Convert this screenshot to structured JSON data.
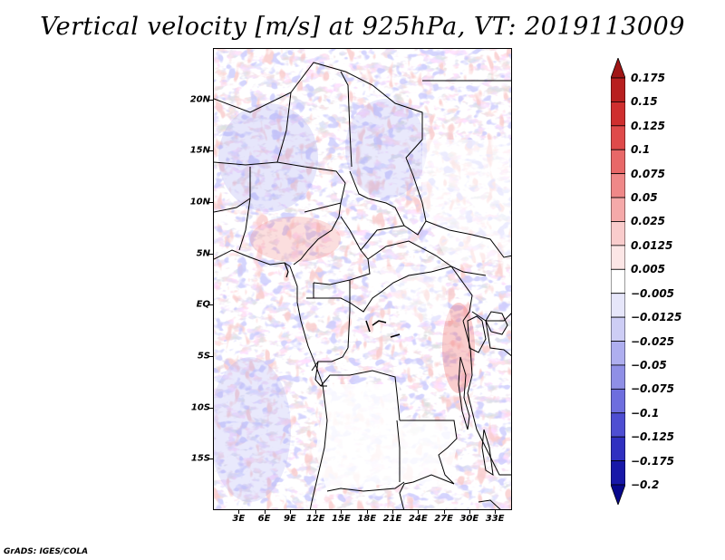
{
  "title": "Vertical velocity [m/s] at 925hPa, VT: 2019113009",
  "credit": "GrADS: IGES/COLA",
  "map": {
    "lon_range": [
      0,
      35
    ],
    "lat_range": [
      -20,
      25
    ],
    "lat_labels": [
      "20N",
      "15N",
      "10N",
      "5N",
      "EQ",
      "5S",
      "10S",
      "15S"
    ],
    "lat_values": [
      20,
      15,
      10,
      5,
      0,
      -5,
      -10,
      -15
    ],
    "lon_labels": [
      "3E",
      "6E",
      "9E",
      "12E",
      "15E",
      "18E",
      "21E",
      "24E",
      "27E",
      "30E",
      "33E"
    ],
    "lon_values": [
      3,
      6,
      9,
      12,
      15,
      18,
      21,
      24,
      27,
      30,
      33
    ]
  },
  "colorbar": {
    "labels": [
      "0.175",
      "0.15",
      "0.125",
      "0.1",
      "0.075",
      "0.05",
      "0.025",
      "0.0125",
      "0.005",
      "-0.005",
      "-0.0125",
      "-0.025",
      "-0.05",
      "-0.075",
      "-0.1",
      "-0.125",
      "-0.175",
      "-0.2"
    ],
    "colors": [
      "#a01616",
      "#b82020",
      "#cf2f2f",
      "#df4a4a",
      "#e86868",
      "#ef8888",
      "#f5a9a9",
      "#f9cccc",
      "#fce6e6",
      "#ffffff",
      "#e6e6fa",
      "#cdcdf5",
      "#aeaeef",
      "#8f8fe6",
      "#6e6ede",
      "#4e4ed2",
      "#3030c0",
      "#1818a8",
      "#08088c"
    ]
  }
}
